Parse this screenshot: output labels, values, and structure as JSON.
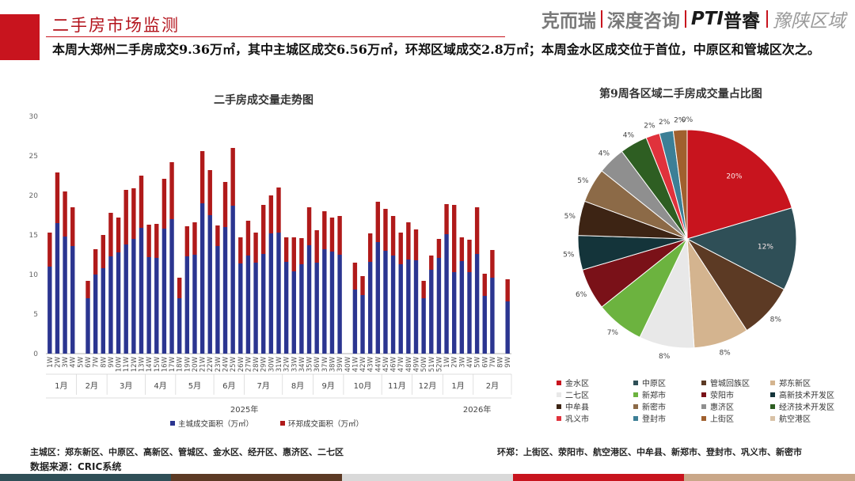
{
  "header": {
    "title": "二手房市场监测",
    "brand_left": "克而瑞",
    "brand_mid": "深度咨询",
    "brand_pti": "PTI",
    "brand_pu": "普睿",
    "brand_region": "豫陕区域"
  },
  "summary": "本周大郑州二手房成交9.36万㎡，其中主城区成交6.56万㎡，环郑区域成交2.8万㎡；本周金水区成交位于首位，中原区和管城区次之。",
  "colors": {
    "main_series": "#2b3590",
    "env_series": "#b01a1a",
    "accent": "#c8141e",
    "strip": [
      "#2f4f57",
      "#5c3a24",
      "#d9d9d9",
      "#c8141e",
      "#c9a788"
    ]
  },
  "chart_data": [
    {
      "type": "bar",
      "stacked": true,
      "title": "二手房成交量走势图",
      "ylim": [
        0,
        30
      ],
      "yticks": [
        0,
        5,
        10,
        15,
        20,
        25,
        30
      ],
      "grid": false,
      "legend_position": "bottom",
      "categories": [
        "1W",
        "2W",
        "3W",
        "4W",
        "5W",
        "6W",
        "7W",
        "8W",
        "9W",
        "10W",
        "11W",
        "12W",
        "13W",
        "14W",
        "15W",
        "16W",
        "17W",
        "18W",
        "19W",
        "20W",
        "21W",
        "22W",
        "23W",
        "24W",
        "25W",
        "26W",
        "27W",
        "28W",
        "29W",
        "30W",
        "31W",
        "32W",
        "33W",
        "34W",
        "35W",
        "36W",
        "37W",
        "38W",
        "39W",
        "40W",
        "41W",
        "42W",
        "43W",
        "44W",
        "45W",
        "46W",
        "47W",
        "48W",
        "49W",
        "50W",
        "51W",
        "52W",
        "1W",
        "2W",
        "3W",
        "4W",
        "5W",
        "6W",
        "7W",
        "8W",
        "9W"
      ],
      "series": [
        {
          "name": "主城成交面积（万㎡）",
          "values": [
            11.0,
            16.5,
            14.8,
            13.6,
            0,
            7.0,
            10.0,
            10.8,
            12.3,
            12.8,
            13.8,
            14.5,
            15.9,
            12.2,
            12.1,
            15.8,
            17.0,
            7.0,
            12.3,
            12.5,
            19.0,
            17.5,
            13.6,
            16.0,
            18.7,
            11.4,
            12.4,
            11.5,
            12.6,
            15.2,
            15.3,
            11.6,
            10.4,
            11.3,
            13.7,
            11.5,
            13.2,
            12.9,
            12.5,
            0,
            8.1,
            7.4,
            11.6,
            14.1,
            13.0,
            12.4,
            11.3,
            11.9,
            11.8,
            7.0,
            10.6,
            12.1,
            15.1,
            10.3,
            11.7,
            10.3,
            12.6,
            7.3,
            9.6,
            0,
            6.6
          ]
        },
        {
          "name": "环郑成交面积（万㎡）",
          "values": [
            4.3,
            6.4,
            5.7,
            4.9,
            0,
            2.2,
            3.2,
            4.2,
            5.5,
            4.4,
            6.9,
            6.4,
            6.6,
            4.1,
            4.3,
            6.3,
            7.2,
            2.6,
            3.8,
            4.1,
            6.6,
            5.7,
            2.6,
            5.7,
            7.3,
            3.3,
            4.4,
            3.8,
            6.2,
            4.8,
            5.7,
            3.1,
            4.3,
            3.3,
            4.8,
            4.1,
            4.8,
            4.3,
            4.9,
            0,
            3.4,
            2.4,
            3.6,
            5.1,
            5.3,
            5.0,
            4.0,
            4.7,
            3.9,
            2.2,
            1.8,
            2.4,
            3.8,
            8.5,
            3.0,
            4.1,
            5.9,
            2.8,
            3.5,
            0,
            2.8
          ]
        }
      ],
      "months": [
        {
          "label": "1月",
          "start": 0,
          "end": 3
        },
        {
          "label": "2月",
          "start": 4,
          "end": 7
        },
        {
          "label": "3月",
          "start": 8,
          "end": 12
        },
        {
          "label": "4月",
          "start": 13,
          "end": 16
        },
        {
          "label": "5月",
          "start": 17,
          "end": 21
        },
        {
          "label": "6月",
          "start": 22,
          "end": 25
        },
        {
          "label": "7月",
          "start": 26,
          "end": 30
        },
        {
          "label": "8月",
          "start": 31,
          "end": 34
        },
        {
          "label": "9月",
          "start": 35,
          "end": 38
        },
        {
          "label": "10月",
          "start": 39,
          "end": 43
        },
        {
          "label": "11月",
          "start": 44,
          "end": 47
        },
        {
          "label": "12月",
          "start": 48,
          "end": 51
        },
        {
          "label": "1月",
          "start": 52,
          "end": 55
        },
        {
          "label": "2月",
          "start": 56,
          "end": 60
        }
      ],
      "years": [
        {
          "label": "2025年",
          "start": 0,
          "end": 51
        },
        {
          "label": "2026年",
          "start": 52,
          "end": 60
        }
      ]
    },
    {
      "type": "pie",
      "title": "第9周各区域二手房成交量占比图",
      "labels": [
        "金水区",
        "中原区",
        "管城回族区",
        "郑东新区",
        "二七区",
        "新郑市",
        "荥阳市",
        "高新技术开发区",
        "中牟县",
        "新密市",
        "惠济区",
        "经济技术开发区",
        "巩义市",
        "登封市",
        "上街区",
        "航空港区"
      ],
      "values": [
        20,
        12,
        8,
        8,
        8,
        7,
        6,
        5,
        5,
        5,
        4,
        4,
        2,
        2,
        2,
        0
      ],
      "display_labels": [
        "20%",
        "12%",
        "8%",
        "8%",
        "8%",
        "7%",
        "6%",
        "5%",
        "5%",
        "5%",
        "4%",
        "4%",
        "2%",
        "2%",
        "2%",
        "0%"
      ],
      "colors": [
        "#c8141e",
        "#2f4f57",
        "#5c3a24",
        "#d4b48f",
        "#e8e8e8",
        "#6cb33f",
        "#7a1118",
        "#14343a",
        "#3d2414",
        "#8c6a47",
        "#8f8f8f",
        "#2e5e22",
        "#e0323c",
        "#3c7f96",
        "#a0602e",
        "#d9c2a6"
      ],
      "legend_position": "bottom"
    }
  ],
  "footer": {
    "main_city": "主城区：郑东新区、中原区、高新区、管城区、金水区、经开区、惠济区、二七区",
    "env_city": "环郑：上街区、荥阳市、航空港区、中牟县、新郑市、登封市、巩义市、新密市",
    "source": "数据来源：CRIC系统"
  }
}
